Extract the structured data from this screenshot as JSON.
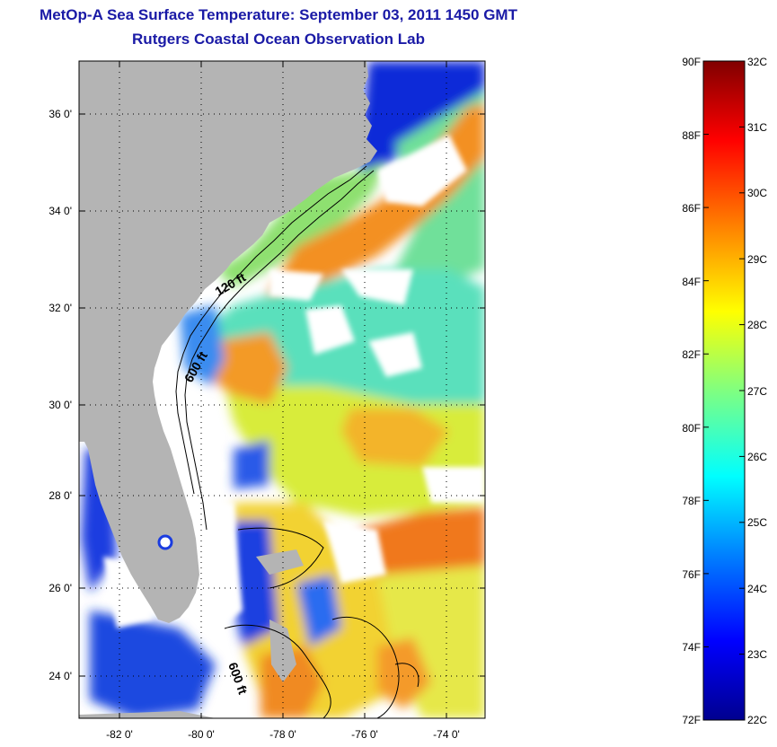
{
  "header": {
    "title": "MetOp-A Sea Surface Temperature:  September 03, 2011 1450 GMT",
    "subtitle": "Rutgers Coastal Ocean Observation Lab"
  },
  "map": {
    "lat_labels": [
      "36 0'",
      "34 0'",
      "32 0'",
      "30 0'",
      "28 0'",
      "26 0'",
      "24 0'"
    ],
    "lon_labels": [
      "-82 0'",
      "-80 0'",
      "-78 0'",
      "-76 0'",
      "-74 0'"
    ],
    "contour_labels": [
      "120 ft",
      "600 ft",
      "600 ft"
    ],
    "colors": {
      "land": "#b4b4b4",
      "missing": "#ffffff",
      "contour": "#000000"
    }
  },
  "colorbar": {
    "f_labels": [
      "90F",
      "88F",
      "86F",
      "84F",
      "82F",
      "80F",
      "78F",
      "76F",
      "74F",
      "72F"
    ],
    "c_labels": [
      "32C",
      "31C",
      "30C",
      "29C",
      "28C",
      "27C",
      "26C",
      "25C",
      "24C",
      "23C",
      "22C"
    ],
    "colormap": [
      "#00008f",
      "#0000ff",
      "#0080ff",
      "#00ffff",
      "#80ff80",
      "#ffff00",
      "#ff8000",
      "#ff0000",
      "#800000"
    ]
  }
}
